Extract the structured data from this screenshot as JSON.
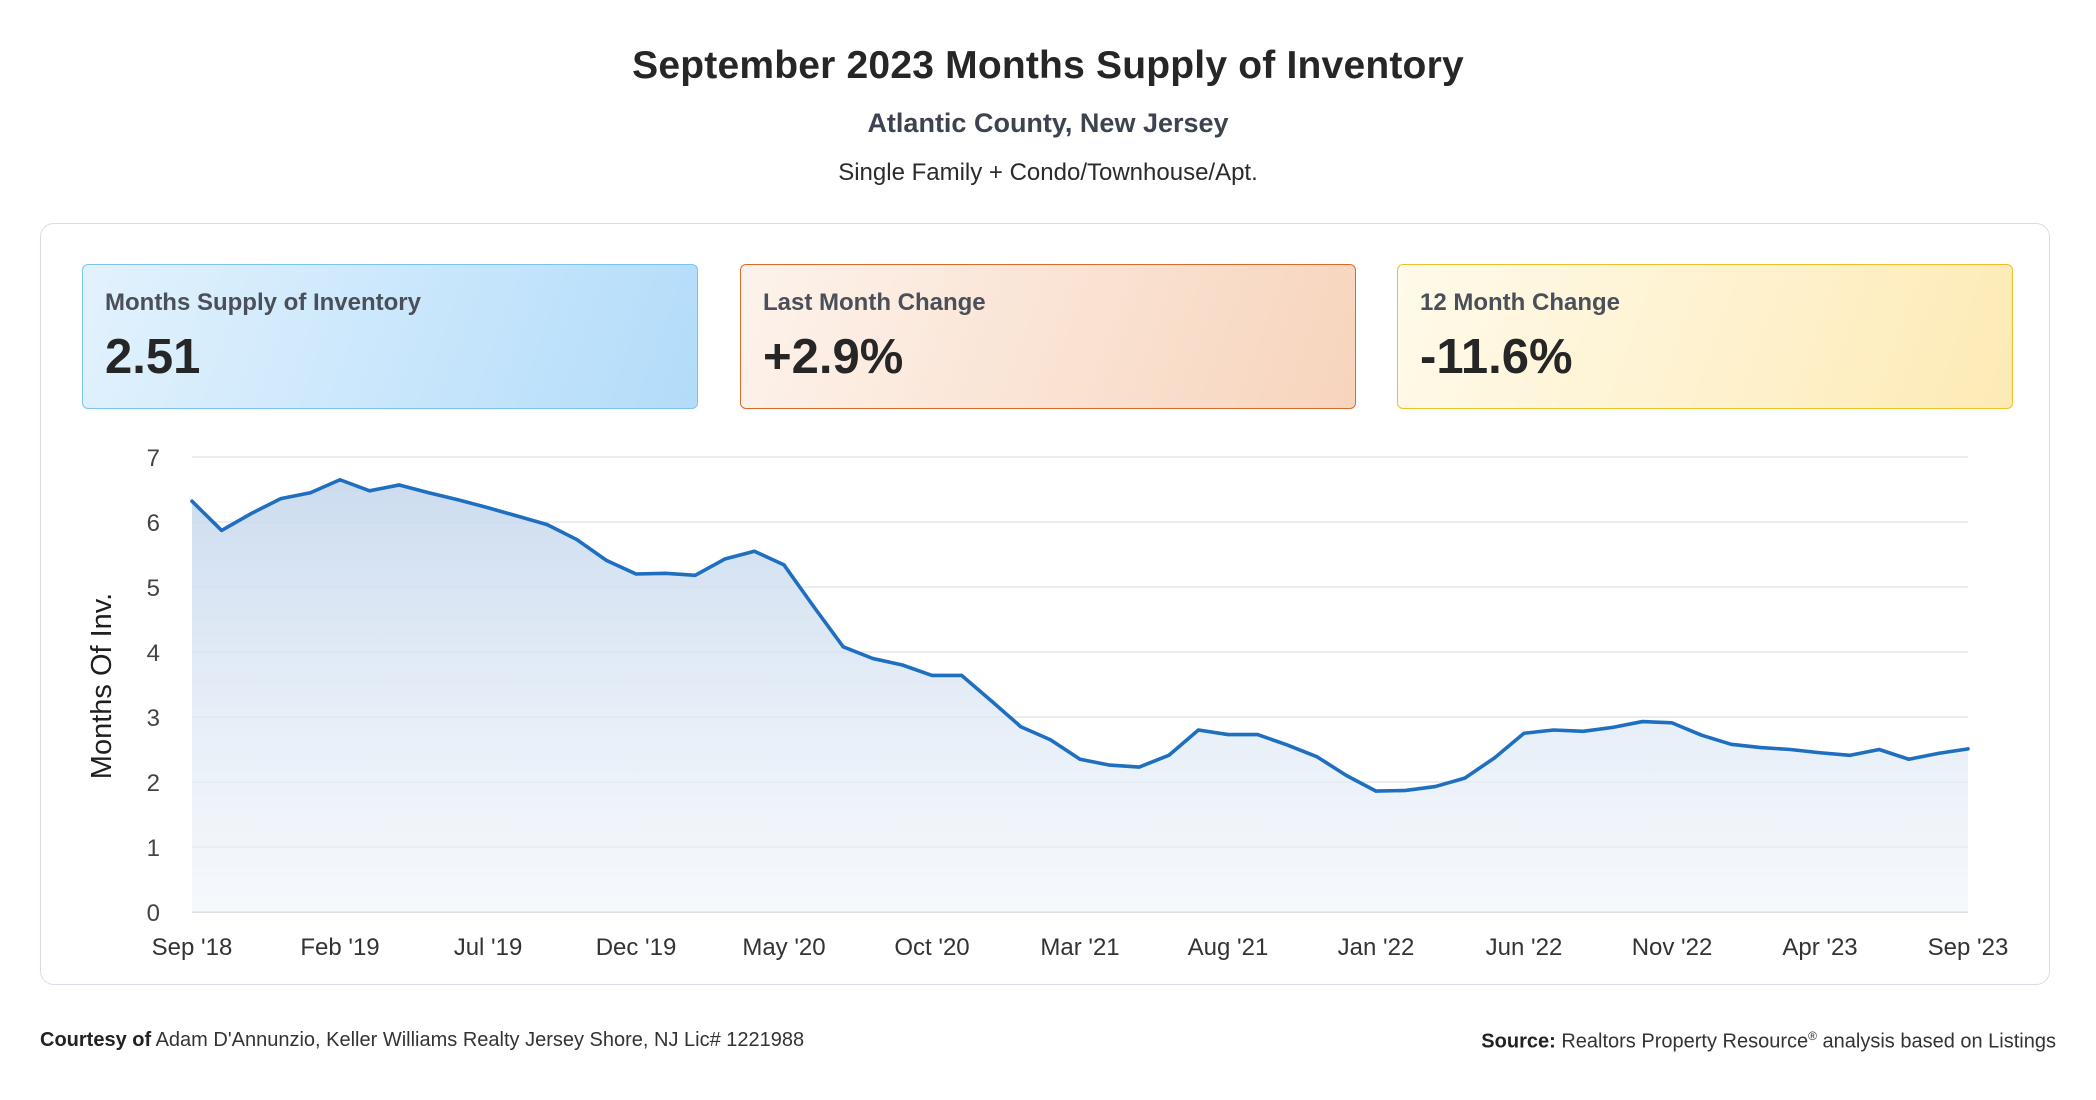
{
  "header": {
    "title": "September 2023 Months Supply of Inventory",
    "subtitle": "Atlantic County, New Jersey",
    "property_types": "Single Family + Condo/Townhouse/Apt."
  },
  "cards": [
    {
      "label": "Months Supply of Inventory",
      "value": "2.51",
      "color": "#b2dcfa"
    },
    {
      "label": "Last Month Change",
      "value": "+2.9%",
      "color": "#f7d4bc"
    },
    {
      "label": "12 Month Change",
      "value": "-11.6%",
      "color": "#fdeab5"
    }
  ],
  "chart_data": {
    "type": "area",
    "ylabel": "Months Of Inv.",
    "ylim": [
      0,
      7
    ],
    "yticks": [
      0,
      1,
      2,
      3,
      4,
      5,
      6,
      7
    ],
    "xtick_labels": [
      "Sep '18",
      "Feb '19",
      "Jul '19",
      "Dec '19",
      "May '20",
      "Oct '20",
      "Mar '21",
      "Aug '21",
      "Jan '22",
      "Jun '22",
      "Nov '22",
      "Apr '23",
      "Sep '23"
    ],
    "x": [
      "Sep '18",
      "Oct '18",
      "Nov '18",
      "Dec '18",
      "Jan '19",
      "Feb '19",
      "Mar '19",
      "Apr '19",
      "May '19",
      "Jun '19",
      "Jul '19",
      "Aug '19",
      "Sep '19",
      "Oct '19",
      "Nov '19",
      "Dec '19",
      "Jan '20",
      "Feb '20",
      "Mar '20",
      "Apr '20",
      "May '20",
      "Jun '20",
      "Jul '20",
      "Aug '20",
      "Sep '20",
      "Oct '20",
      "Nov '20",
      "Dec '20",
      "Jan '21",
      "Feb '21",
      "Mar '21",
      "Apr '21",
      "May '21",
      "Jun '21",
      "Jul '21",
      "Aug '21",
      "Sep '21",
      "Oct '21",
      "Nov '21",
      "Dec '21",
      "Jan '22",
      "Feb '22",
      "Mar '22",
      "Apr '22",
      "May '22",
      "Jun '22",
      "Jul '22",
      "Aug '22",
      "Sep '22",
      "Oct '22",
      "Nov '22",
      "Dec '22",
      "Jan '23",
      "Feb '23",
      "Mar '23",
      "Apr '23",
      "May '23",
      "Jun '23",
      "Jul '23",
      "Aug '23",
      "Sep '23"
    ],
    "series": [
      {
        "values": [
          6.32,
          5.87,
          6.13,
          6.36,
          6.45,
          6.65,
          6.48,
          6.57,
          6.45,
          6.34,
          6.22,
          6.09,
          5.96,
          5.73,
          5.41,
          5.2,
          5.21,
          5.18,
          5.43,
          5.55,
          5.34,
          4.7,
          4.08,
          3.9,
          3.8,
          3.64,
          3.64,
          3.25,
          2.85,
          2.65,
          2.35,
          2.26,
          2.23,
          2.41,
          2.8,
          2.73,
          2.73,
          2.57,
          2.39,
          2.1,
          1.86,
          1.87,
          1.93,
          2.06,
          2.37,
          2.75,
          2.8,
          2.78,
          2.84,
          2.93,
          2.91,
          2.72,
          2.58,
          2.53,
          2.5,
          2.45,
          2.41,
          2.5,
          2.35,
          2.44,
          2.51
        ],
        "color": "#1f6fc1"
      }
    ],
    "grid": true,
    "legend": "none"
  },
  "footer": {
    "courtesy_label": "Courtesy of",
    "courtesy_text": "Adam D'Annunzio, Keller Williams Realty Jersey Shore, NJ Lic# 1221988",
    "source_label": "Source:",
    "source_text": "Realtors Property Resource",
    "source_mark": "®",
    "source_suffix": "analysis based on Listings"
  }
}
